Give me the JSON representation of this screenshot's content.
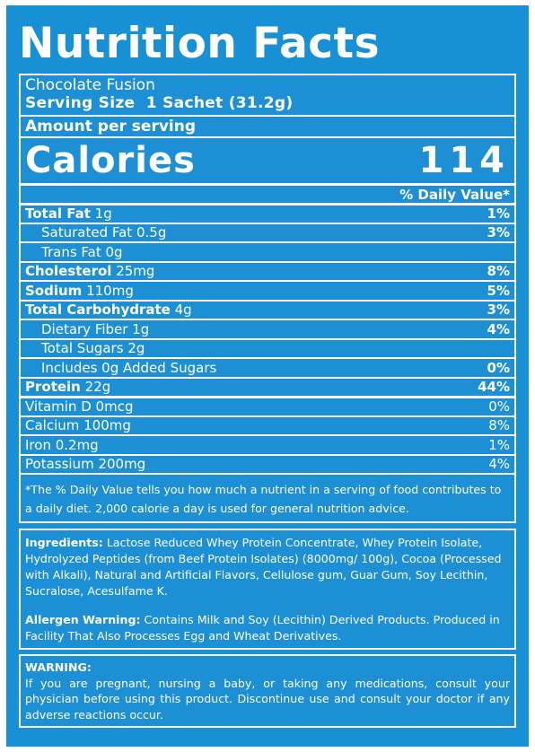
{
  "title": "Nutrition Facts",
  "product_name": "Chocolate Fusion",
  "serving_size": "Serving Size  1 Sachet (31.2g)",
  "amount_per_serving": "Amount per serving",
  "calories": {
    "label": "Calories",
    "value": "114"
  },
  "daily_value_header": "% Daily Value*",
  "nutrients": [
    {
      "name": "Total Fat",
      "amount": "1g",
      "dv": "1%"
    },
    {
      "name": "Saturated Fat",
      "amount": "0.5g",
      "dv": "3%"
    },
    {
      "name": "Trans Fat",
      "amount": "0g",
      "dv": ""
    },
    {
      "name": "Cholesterol",
      "amount": "25mg",
      "dv": "8%"
    },
    {
      "name": "Sodium",
      "amount": "110mg",
      "dv": "5%"
    },
    {
      "name": "Total Carbohydrate",
      "amount": "4g",
      "dv": "3%"
    },
    {
      "name": "Dietary Fiber",
      "amount": "1g",
      "dv": "4%"
    },
    {
      "name": "Total Sugars",
      "amount": "2g",
      "dv": ""
    },
    {
      "name": "Includes 0g Added Sugars",
      "amount": "",
      "dv": "0%"
    },
    {
      "name": "Protein",
      "amount": "22g",
      "dv": "44%"
    }
  ],
  "vitamins": [
    {
      "label": "Vitamin D 0mcg",
      "dv": "0%"
    },
    {
      "label": "Calcium 100mg",
      "dv": "8%"
    },
    {
      "label": "Iron 0.2mg",
      "dv": "1%"
    },
    {
      "label": "Potassium 200mg",
      "dv": "4%"
    }
  ],
  "footnote": "*The % Daily Value tells you how much a nutrient in a serving of food contributes to a daily diet. 2,000 calorie a day is used for general nutrition advice.",
  "ingredients": {
    "label": "Ingredients:",
    "text": "Lactose Reduced Whey Protein Concentrate, Whey Protein Isolate, Hydrolyzed Peptides (from Beef Protein Isolates) (8000mg/ 100g), Cocoa (Processed with Alkali), Natural and Artificial Flavors, Cellulose gum, Guar Gum, Soy Lecithin, Sucralose, Acesulfame K."
  },
  "allergen": {
    "label": "Allergen Warning:",
    "text": "Contains Milk and Soy (Lecithin) Derived Products. Produced in Facility That Also Processes Egg and Wheat Derivatives."
  },
  "warning": {
    "label": "WARNING:",
    "text": "If you are pregnant, nursing a baby, or taking any medications, consult your physician before using this product. Discontinue use and consult your doctor if any adverse reactions occur."
  },
  "colors": {
    "background": "#1790d6",
    "text": "#ffffff"
  }
}
